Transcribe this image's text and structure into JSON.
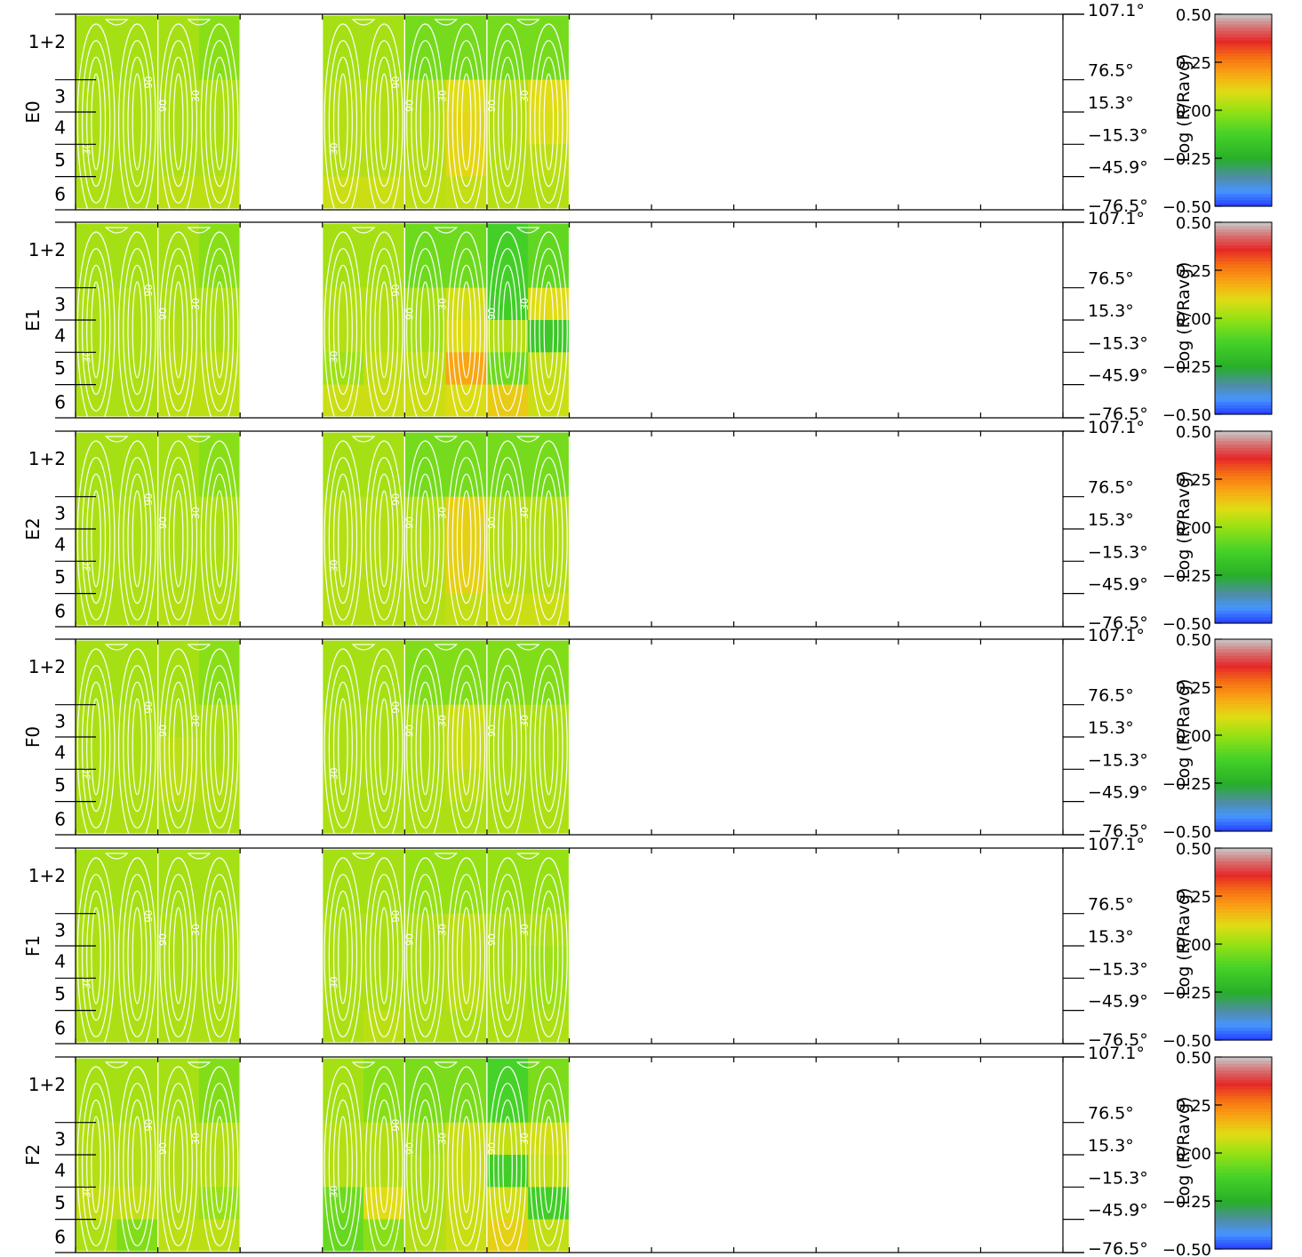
{
  "chart_data": {
    "type": "heatmap",
    "colorbar": {
      "label": "Log (R/Ravg)",
      "ticks": [
        "0.50",
        "0.25",
        "0.00",
        "−0.25",
        "−0.50"
      ],
      "range": [
        -0.5,
        0.5
      ]
    },
    "panel_labels": [
      "E0",
      "E1",
      "E2",
      "F0",
      "F1",
      "F2"
    ],
    "row_labels": [
      "1+2",
      "3",
      "4",
      "5",
      "6"
    ],
    "right_axis_ticks": [
      "107.1°",
      "76.5°",
      "15.3°",
      "−15.3°",
      "−45.9°",
      "−76.5°"
    ],
    "contour_labels": [
      "90",
      "30"
    ],
    "module_columns": [
      0,
      1,
      3,
      4,
      5
    ],
    "subcolumns_per_module": 2,
    "bins": [
      "1+2 (107.1° to 76.5°)",
      "3 (76.5° to 15.3°)",
      "4 (15.3° to −15.3°)",
      "5 (−15.3° to −45.9°)",
      "6 (−45.9° to −76.5°)"
    ],
    "panels": [
      {
        "name": "E0",
        "values": [
          [
            0.02,
            0.02,
            0.02,
            -0.02,
            0.02,
            0.02,
            -0.05,
            -0.05,
            -0.05,
            -0.05
          ],
          [
            0.03,
            0.03,
            0.03,
            0.03,
            0.04,
            0.04,
            0.03,
            0.1,
            0.04,
            0.1
          ],
          [
            0.03,
            0.03,
            0.03,
            0.03,
            0.04,
            0.04,
            0.04,
            0.11,
            0.04,
            0.09
          ],
          [
            0.03,
            0.03,
            0.03,
            0.03,
            0.04,
            0.04,
            0.04,
            0.11,
            0.04,
            0.05
          ],
          [
            0.03,
            0.03,
            0.05,
            0.05,
            0.07,
            0.07,
            0.05,
            0.06,
            0.04,
            0.04
          ]
        ]
      },
      {
        "name": "E1",
        "values": [
          [
            0.02,
            0.02,
            0.02,
            -0.02,
            0.02,
            0.02,
            -0.06,
            -0.06,
            -0.13,
            -0.08
          ],
          [
            0.03,
            0.03,
            0.03,
            0.03,
            0.04,
            0.04,
            0.02,
            0.08,
            -0.14,
            0.1
          ],
          [
            0.03,
            0.03,
            0.04,
            0.03,
            0.04,
            0.04,
            0.02,
            0.1,
            0.04,
            -0.16
          ],
          [
            0.03,
            0.03,
            0.05,
            0.05,
            0.01,
            0.06,
            0.05,
            0.19,
            -0.06,
            0.06
          ],
          [
            0.03,
            0.03,
            0.05,
            0.05,
            0.07,
            0.07,
            0.07,
            0.09,
            0.13,
            0.07
          ]
        ]
      },
      {
        "name": "E2",
        "values": [
          [
            0.02,
            0.02,
            0.02,
            -0.02,
            0.02,
            0.02,
            -0.05,
            -0.05,
            -0.05,
            -0.05
          ],
          [
            0.03,
            0.03,
            0.03,
            0.03,
            0.04,
            0.04,
            0.03,
            0.12,
            0.04,
            0.04
          ],
          [
            0.03,
            0.03,
            0.03,
            0.03,
            0.04,
            0.04,
            0.04,
            0.12,
            0.04,
            0.04
          ],
          [
            0.03,
            0.03,
            0.03,
            0.03,
            0.04,
            0.04,
            0.04,
            0.12,
            0.04,
            0.04
          ],
          [
            0.03,
            0.03,
            0.04,
            0.04,
            0.04,
            0.04,
            0.04,
            0.06,
            0.07,
            0.07
          ]
        ]
      },
      {
        "name": "F0",
        "values": [
          [
            0.02,
            0.02,
            0.02,
            -0.02,
            0.02,
            0.02,
            -0.03,
            -0.03,
            -0.03,
            -0.03
          ],
          [
            0.03,
            0.03,
            0.03,
            0.03,
            0.03,
            0.03,
            0.03,
            0.07,
            0.03,
            0.03
          ],
          [
            0.03,
            0.03,
            0.05,
            0.03,
            0.03,
            0.03,
            0.03,
            0.07,
            0.03,
            0.03
          ],
          [
            0.03,
            0.03,
            0.05,
            0.04,
            0.03,
            0.03,
            0.03,
            0.05,
            0.03,
            0.03
          ],
          [
            0.03,
            0.03,
            0.03,
            0.03,
            0.03,
            0.03,
            0.03,
            0.03,
            0.03,
            0.03
          ]
        ]
      },
      {
        "name": "F1",
        "values": [
          [
            0.02,
            0.02,
            0.02,
            0.02,
            0.02,
            0.02,
            0.0,
            0.0,
            0.0,
            0.0
          ],
          [
            0.03,
            0.03,
            0.03,
            0.03,
            0.03,
            0.03,
            0.03,
            0.05,
            0.03,
            0.03
          ],
          [
            0.03,
            0.03,
            0.03,
            0.03,
            0.03,
            0.03,
            0.03,
            0.05,
            0.03,
            0.01
          ],
          [
            0.03,
            0.03,
            0.03,
            0.03,
            0.03,
            0.03,
            0.03,
            0.05,
            0.03,
            0.01
          ],
          [
            0.03,
            0.03,
            0.03,
            0.03,
            0.03,
            0.05,
            0.03,
            0.03,
            0.03,
            0.03
          ]
        ]
      },
      {
        "name": "F2",
        "values": [
          [
            0.02,
            0.02,
            0.02,
            -0.03,
            0.02,
            -0.02,
            -0.04,
            -0.04,
            -0.12,
            -0.04
          ],
          [
            0.04,
            0.04,
            0.04,
            0.04,
            0.04,
            0.04,
            0.02,
            0.07,
            0.06,
            0.08
          ],
          [
            0.04,
            0.04,
            0.04,
            0.04,
            0.04,
            0.04,
            0.03,
            0.07,
            -0.14,
            0.06
          ],
          [
            0.06,
            0.06,
            0.04,
            0.0,
            -0.06,
            0.1,
            0.03,
            0.07,
            0.08,
            -0.14
          ],
          [
            0.03,
            -0.03,
            0.05,
            0.05,
            -0.07,
            -0.02,
            0.04,
            0.07,
            0.12,
            0.06
          ]
        ]
      }
    ]
  }
}
